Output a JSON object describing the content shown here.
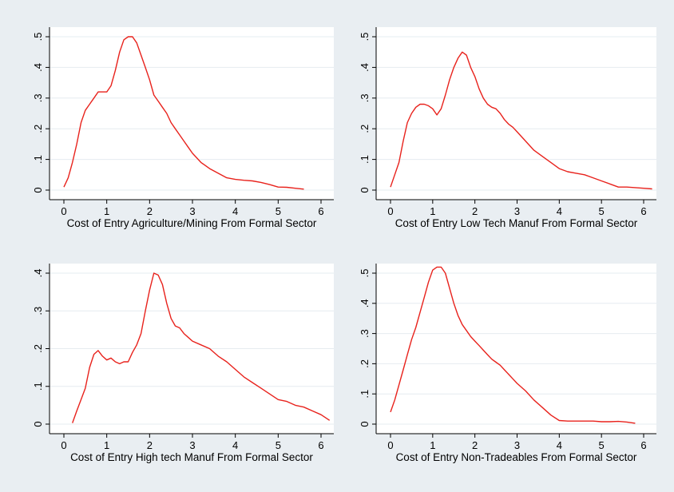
{
  "chart_data": [
    {
      "type": "line",
      "xlabel": "Cost of Entry Agriculture/Mining From Formal Sector",
      "ylabel": "",
      "xlim": [
        0,
        6
      ],
      "ylim": [
        0,
        0.5
      ],
      "xticks": [
        "0",
        "1",
        "2",
        "3",
        "4",
        "5",
        "6"
      ],
      "yticks": [
        "0",
        ".1",
        ".2",
        ".3",
        ".4",
        ".5"
      ],
      "grid": true,
      "series": [
        {
          "color": "#e8221c",
          "x": [
            0,
            0.1,
            0.2,
            0.3,
            0.4,
            0.5,
            0.6,
            0.7,
            0.8,
            0.9,
            1.0,
            1.1,
            1.2,
            1.3,
            1.4,
            1.5,
            1.6,
            1.7,
            1.8,
            1.9,
            2.0,
            2.1,
            2.2,
            2.3,
            2.4,
            2.5,
            2.6,
            2.7,
            2.8,
            2.9,
            3.0,
            3.2,
            3.4,
            3.6,
            3.8,
            4.0,
            4.2,
            4.4,
            4.6,
            4.8,
            5.0,
            5.2,
            5.4,
            5.6
          ],
          "y": [
            0.01,
            0.04,
            0.09,
            0.15,
            0.22,
            0.26,
            0.28,
            0.3,
            0.32,
            0.32,
            0.32,
            0.34,
            0.39,
            0.45,
            0.49,
            0.5,
            0.5,
            0.48,
            0.44,
            0.4,
            0.36,
            0.31,
            0.29,
            0.27,
            0.25,
            0.22,
            0.2,
            0.18,
            0.16,
            0.14,
            0.12,
            0.09,
            0.07,
            0.055,
            0.04,
            0.035,
            0.032,
            0.03,
            0.025,
            0.018,
            0.01,
            0.009,
            0.006,
            0.003
          ]
        }
      ]
    },
    {
      "type": "line",
      "xlabel": "Cost of Entry Low Tech Manuf From Formal Sector",
      "ylabel": "",
      "xlim": [
        0,
        6
      ],
      "ylim": [
        0,
        0.5
      ],
      "xticks": [
        "0",
        "1",
        "2",
        "3",
        "4",
        "5",
        "6"
      ],
      "yticks": [
        "0",
        ".1",
        ".2",
        ".3",
        ".4",
        ".5"
      ],
      "grid": true,
      "series": [
        {
          "color": "#e8221c",
          "x": [
            0,
            0.1,
            0.2,
            0.3,
            0.4,
            0.5,
            0.6,
            0.7,
            0.8,
            0.9,
            1.0,
            1.1,
            1.2,
            1.3,
            1.4,
            1.5,
            1.6,
            1.7,
            1.8,
            1.9,
            2.0,
            2.1,
            2.2,
            2.3,
            2.4,
            2.5,
            2.6,
            2.7,
            2.8,
            2.9,
            3.0,
            3.2,
            3.4,
            3.6,
            3.8,
            4.0,
            4.2,
            4.4,
            4.6,
            4.8,
            5.0,
            5.2,
            5.4,
            5.6,
            6.0,
            6.2
          ],
          "y": [
            0.01,
            0.05,
            0.09,
            0.16,
            0.22,
            0.25,
            0.27,
            0.28,
            0.28,
            0.275,
            0.265,
            0.245,
            0.265,
            0.31,
            0.36,
            0.4,
            0.43,
            0.45,
            0.44,
            0.4,
            0.37,
            0.33,
            0.3,
            0.28,
            0.27,
            0.265,
            0.25,
            0.23,
            0.215,
            0.205,
            0.19,
            0.16,
            0.13,
            0.11,
            0.09,
            0.07,
            0.06,
            0.055,
            0.05,
            0.04,
            0.03,
            0.02,
            0.01,
            0.01,
            0.006,
            0.004
          ]
        }
      ]
    },
    {
      "type": "line",
      "xlabel": "Cost of Entry High tech Manuf From Formal Sector",
      "ylabel": "",
      "xlim": [
        0,
        6
      ],
      "ylim": [
        0,
        0.4
      ],
      "xticks": [
        "0",
        "1",
        "2",
        "3",
        "4",
        "5",
        "6"
      ],
      "yticks": [
        "0",
        ".1",
        ".2",
        ".3",
        ".4"
      ],
      "grid": true,
      "series": [
        {
          "color": "#e8221c",
          "x": [
            0.2,
            0.3,
            0.4,
            0.5,
            0.6,
            0.7,
            0.8,
            0.9,
            1.0,
            1.1,
            1.2,
            1.3,
            1.4,
            1.5,
            1.6,
            1.7,
            1.8,
            1.9,
            2.0,
            2.1,
            2.2,
            2.3,
            2.4,
            2.5,
            2.6,
            2.7,
            2.8,
            2.9,
            3.0,
            3.2,
            3.4,
            3.6,
            3.8,
            4.0,
            4.2,
            4.4,
            4.6,
            4.8,
            5.0,
            5.2,
            5.4,
            5.6,
            5.8,
            6.0,
            6.2
          ],
          "y": [
            0.003,
            0.035,
            0.065,
            0.095,
            0.15,
            0.185,
            0.195,
            0.18,
            0.17,
            0.175,
            0.165,
            0.16,
            0.165,
            0.165,
            0.19,
            0.21,
            0.24,
            0.3,
            0.355,
            0.4,
            0.395,
            0.37,
            0.32,
            0.28,
            0.26,
            0.255,
            0.24,
            0.23,
            0.22,
            0.21,
            0.2,
            0.18,
            0.165,
            0.145,
            0.125,
            0.11,
            0.095,
            0.08,
            0.065,
            0.06,
            0.05,
            0.045,
            0.035,
            0.025,
            0.01
          ]
        }
      ]
    },
    {
      "type": "line",
      "xlabel": "Cost of Entry Non-Tradeables From Formal Sector",
      "ylabel": "",
      "xlim": [
        0,
        6
      ],
      "ylim": [
        0,
        0.5
      ],
      "xticks": [
        "0",
        "1",
        "2",
        "3",
        "4",
        "5",
        "6"
      ],
      "yticks": [
        "0",
        ".1",
        ".2",
        ".3",
        ".4",
        ".5"
      ],
      "grid": true,
      "series": [
        {
          "color": "#e8221c",
          "x": [
            0,
            0.1,
            0.2,
            0.3,
            0.4,
            0.5,
            0.6,
            0.7,
            0.8,
            0.9,
            1.0,
            1.1,
            1.2,
            1.3,
            1.4,
            1.5,
            1.6,
            1.7,
            1.8,
            1.9,
            2.0,
            2.1,
            2.2,
            2.3,
            2.4,
            2.5,
            2.6,
            2.7,
            2.8,
            2.9,
            3.0,
            3.2,
            3.4,
            3.6,
            3.8,
            4.0,
            4.2,
            4.4,
            4.6,
            4.8,
            5.0,
            5.2,
            5.4,
            5.6,
            5.8
          ],
          "y": [
            0.04,
            0.08,
            0.13,
            0.18,
            0.23,
            0.28,
            0.32,
            0.37,
            0.42,
            0.47,
            0.51,
            0.52,
            0.52,
            0.5,
            0.45,
            0.4,
            0.36,
            0.33,
            0.31,
            0.29,
            0.275,
            0.26,
            0.245,
            0.23,
            0.215,
            0.205,
            0.195,
            0.18,
            0.165,
            0.15,
            0.135,
            0.11,
            0.08,
            0.055,
            0.03,
            0.012,
            0.01,
            0.01,
            0.01,
            0.01,
            0.008,
            0.008,
            0.009,
            0.007,
            0.003
          ]
        }
      ]
    }
  ]
}
